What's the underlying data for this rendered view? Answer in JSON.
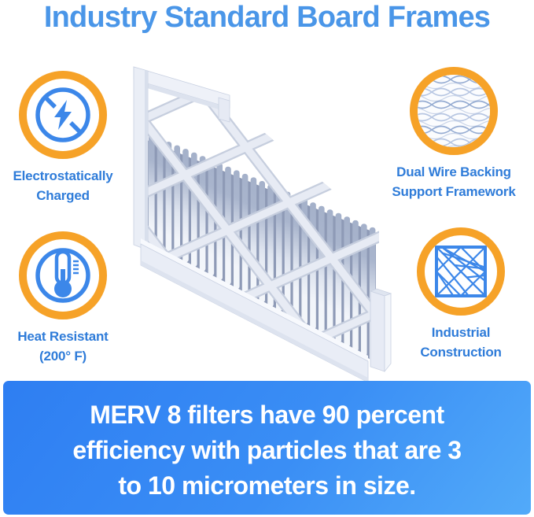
{
  "title": "Industry Standard Board Frames",
  "features": [
    {
      "id": "electrostatic",
      "icon": "lightning-circle-icon",
      "line1": "Electrostatically",
      "line2": "Charged"
    },
    {
      "id": "dual-wire",
      "icon": "wire-mesh-photo-icon",
      "line1": "Dual Wire Backing",
      "line2": "Support Framework"
    },
    {
      "id": "heat",
      "icon": "thermometer-icon",
      "line1": "Heat Resistant",
      "line2": "(200° F)"
    },
    {
      "id": "industrial",
      "icon": "lattice-square-icon",
      "line1": "Industrial",
      "line2": "Construction"
    }
  ],
  "banner": {
    "line1": "MERV 8 filters have 90 percent",
    "line2": "efficiency with particles that are 3",
    "line3": "to 10 micrometers in size."
  },
  "product": {
    "subject": "pleated air filter with industry standard board frame"
  },
  "colors": {
    "title_blue": "#4a96e8",
    "label_blue": "#2f7cd9",
    "ring_orange": "#f6a228",
    "icon_blue": "#3c87e9",
    "banner_gradient_start": "#2e7ef2",
    "banner_gradient_end": "#52aaf9",
    "banner_text": "#ffffff",
    "background": "#ffffff"
  }
}
